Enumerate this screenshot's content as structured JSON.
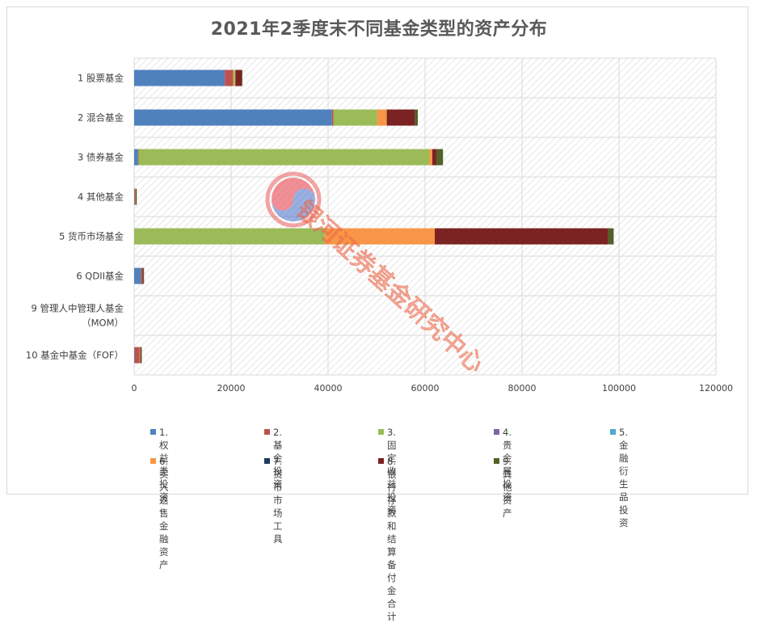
{
  "chart_data": {
    "type": "bar",
    "orientation": "horizontal",
    "stacked": true,
    "title": "2021年2季度末不同基金类型的资产分布",
    "categories": [
      "1 股票基金",
      "2 混合基金",
      "3 债券基金",
      "4 其他基金",
      "5 货币市场基金",
      "6 QDII基金",
      "9 管理人中管理人基金（MOM）",
      "10 基金中基金（FOF）"
    ],
    "category_lines": [
      [
        "1 股票基金"
      ],
      [
        "2 混合基金"
      ],
      [
        "3 债券基金"
      ],
      [
        "4 其他基金"
      ],
      [
        "5 货币市场基金"
      ],
      [
        "6 QDII基金"
      ],
      [
        "9 管理人中管理人基金",
        "（MOM）"
      ],
      [
        "10 基金中基金（FOF）"
      ]
    ],
    "x_ticks": [
      "0",
      "20000",
      "40000",
      "60000",
      "80000",
      "100000",
      "120000"
    ],
    "xlim": [
      0,
      120000
    ],
    "series": [
      {
        "name": "1.权益类投资",
        "color": "#4f81bd",
        "values": [
          18700,
          40800,
          800,
          100,
          0,
          1400,
          0,
          100
        ]
      },
      {
        "name": "2.基金投资",
        "color": "#c0504d",
        "values": [
          1700,
          300,
          100,
          100,
          0,
          300,
          0,
          1000
        ]
      },
      {
        "name": "3.固定收益投资",
        "color": "#9bbb59",
        "values": [
          400,
          9000,
          60000,
          0,
          39300,
          0,
          0,
          100
        ]
      },
      {
        "name": "4.贵金属投资",
        "color": "#8064a2",
        "values": [
          0,
          0,
          0,
          0,
          0,
          0,
          0,
          0
        ]
      },
      {
        "name": "5.金融衍生品投资",
        "color": "#4bacc6",
        "values": [
          0,
          0,
          0,
          0,
          0,
          0,
          0,
          0
        ]
      },
      {
        "name": "6.买入返售\n金融资产",
        "color": "#f79646",
        "values": [
          100,
          2000,
          600,
          100,
          22700,
          0,
          0,
          50
        ]
      },
      {
        "name": "7.货币市场工具",
        "color": "#1f3864",
        "values": [
          0,
          0,
          0,
          0,
          0,
          0,
          0,
          0
        ]
      },
      {
        "name": "8.银行存款和\n结算备付金合计",
        "color": "#7b2323",
        "values": [
          1300,
          5800,
          900,
          100,
          35800,
          200,
          0,
          200
        ]
      },
      {
        "name": "9.其他资产",
        "color": "#4f6228",
        "values": [
          100,
          600,
          1300,
          100,
          1100,
          100,
          0,
          100
        ]
      }
    ]
  },
  "watermark": {
    "text": "银河证券基金研究中心"
  }
}
